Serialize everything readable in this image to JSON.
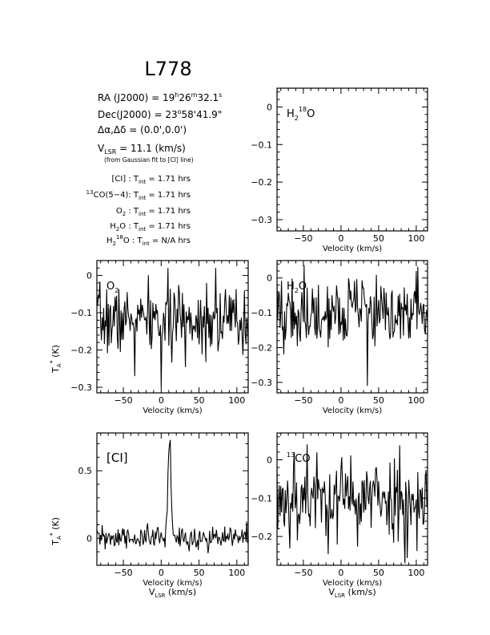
{
  "title": "L778",
  "header": {
    "ra": "RA (J2000) = 19h26m32.1s",
    "dec": "Dec(J2000) = 23°58'41.9\"",
    "offset": "Δα,Δδ = (0.0',0.0')",
    "vlsr": "VLSR = 11.1 (km/s)",
    "vlsr_note": "(from Gaussian fit to [CI] line)",
    "tint": [
      {
        "line": "[CI]",
        "value": "1.71 hrs"
      },
      {
        "line": "13CO(5-4)",
        "value": "1.71 hrs"
      },
      {
        "line": "O2",
        "value": "1.71 hrs"
      },
      {
        "line": "H2O",
        "value": "1.71 hrs"
      },
      {
        "line": "H2 18O",
        "value": "N/A hrs"
      }
    ]
  },
  "chart_data": [
    {
      "id": "h218o",
      "type": "line",
      "label": "H2 18O",
      "xlabel": "Velocity (km/s)",
      "ylabel": "",
      "xlim": [
        -85,
        115
      ],
      "ylim": [
        -0.33,
        0.05
      ],
      "xticks": [
        -50,
        0,
        50,
        100
      ],
      "yticks": [
        0,
        -0.1,
        -0.2,
        -0.3
      ],
      "ytick_labels": [
        "0",
        "-0.1",
        "-0.2",
        "-0.3"
      ],
      "series": []
    },
    {
      "id": "o2",
      "type": "line",
      "label": "O2",
      "xlabel": "Velocity (km/s)",
      "ylabel": "TA* (K)",
      "xlim": [
        -85,
        115
      ],
      "ylim": [
        -0.315,
        0.04
      ],
      "xticks": [
        -50,
        0,
        50,
        100
      ],
      "yticks": [
        0,
        -0.1,
        -0.2,
        -0.3
      ],
      "ytick_labels": [
        "0",
        "-0.1",
        "-0.2",
        "-0.3"
      ],
      "noise": {
        "mean": -0.12,
        "sigma": 0.045,
        "step": 1.0,
        "seed": 7
      },
      "spikes": [
        [
          0,
          -0.3
        ],
        [
          -35,
          -0.27
        ],
        [
          72,
          0.02
        ],
        [
          60,
          -0.02
        ]
      ]
    },
    {
      "id": "h2o",
      "type": "line",
      "label": "H2O",
      "xlabel": "Velocity (km/s)",
      "ylabel": "",
      "xlim": [
        -85,
        115
      ],
      "ylim": [
        -0.33,
        0.05
      ],
      "xticks": [
        -50,
        0,
        50,
        100
      ],
      "yticks": [
        0,
        -0.1,
        -0.2,
        -0.3
      ],
      "ytick_labels": [
        "0",
        "-0.1",
        "-0.2",
        "-0.3"
      ],
      "noise": {
        "mean": -0.1,
        "sigma": 0.05,
        "step": 1.0,
        "seed": 19
      },
      "spikes": [
        [
          35,
          -0.31
        ],
        [
          100,
          0.02
        ],
        [
          -30,
          -0.02
        ]
      ]
    },
    {
      "id": "ci",
      "type": "line",
      "label": "[CI]",
      "xlabel": "Velocity (km/s)",
      "xlabel2": "VLSR (km/s)",
      "ylabel": "TA* (K)",
      "xlim": [
        -85,
        115
      ],
      "ylim": [
        -0.2,
        0.78
      ],
      "xticks": [
        -50,
        0,
        50,
        100
      ],
      "yticks": [
        0,
        0.5
      ],
      "ytick_labels": [
        "0",
        "0.5"
      ],
      "noise": {
        "mean": 0.0,
        "sigma": 0.045,
        "step": 1.0,
        "seed": 31
      },
      "gaussian": {
        "center": 11.1,
        "amp": 0.76,
        "fwhm": 4.5
      }
    },
    {
      "id": "co13",
      "type": "line",
      "label": "13CO",
      "xlabel": "Velocity (km/s)",
      "xlabel2": "VLSR (km/s)",
      "ylabel": "",
      "xlim": [
        -85,
        115
      ],
      "ylim": [
        -0.275,
        0.07
      ],
      "xticks": [
        -50,
        0,
        50,
        100
      ],
      "yticks": [
        0,
        -0.1,
        -0.2
      ],
      "ytick_labels": [
        "0",
        "-0.1",
        "-0.2"
      ],
      "noise": {
        "mean": -0.1,
        "sigma": 0.055,
        "step": 1.0,
        "seed": 53
      },
      "spikes": [
        [
          -45,
          0.04
        ],
        [
          -62,
          0.02
        ],
        [
          85,
          -0.27
        ]
      ]
    }
  ]
}
